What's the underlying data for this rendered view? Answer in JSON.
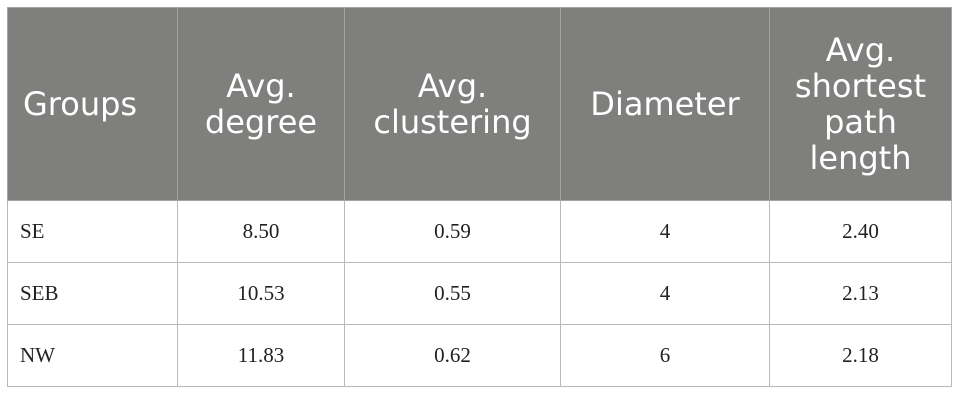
{
  "table": {
    "headers": [
      "Groups",
      "Avg.\ndegree",
      "Avg.\nclustering",
      "Diameter",
      "Avg.\nshortest\npath\nlength"
    ],
    "rows": [
      [
        "SE",
        "8.50",
        "0.59",
        "4",
        "2.40"
      ],
      [
        "SEB",
        "10.53",
        "0.55",
        "4",
        "2.13"
      ],
      [
        "NW",
        "11.83",
        "0.62",
        "6",
        "2.18"
      ]
    ]
  }
}
